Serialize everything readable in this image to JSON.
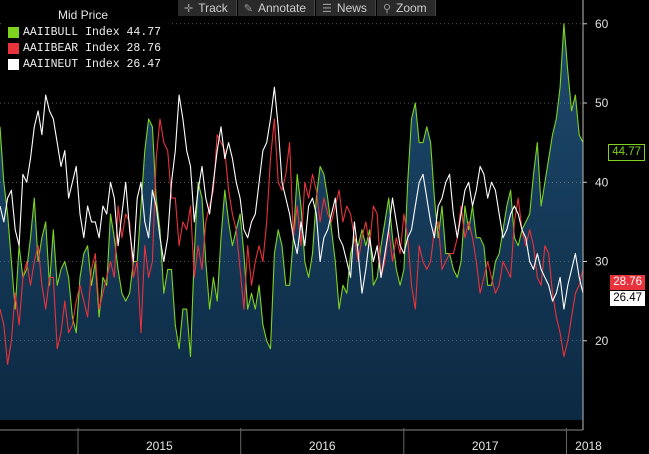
{
  "toolbar": {
    "track_label": "Track",
    "annotate_label": "Annotate",
    "news_label": "News",
    "zoom_label": "Zoom"
  },
  "legend": {
    "title": "Mid Price",
    "items": [
      {
        "label": "AAIIBULL Index 44.77",
        "color": "#7ed321"
      },
      {
        "label": "AAIIBEAR Index 28.76",
        "color": "#e8323c"
      },
      {
        "label": "AAIINEUT Index 26.47",
        "color": "#ffffff"
      }
    ]
  },
  "value_badges": [
    {
      "text": "44.77",
      "color": "#7ed321",
      "value": 44.77
    },
    {
      "text": "28.76",
      "color": "#e8323c",
      "value": 28.76
    },
    {
      "text": "26.47",
      "color": "#ffffff",
      "value": 26.47
    }
  ],
  "chart_data": {
    "type": "line",
    "y_ticks": [
      20,
      30,
      40,
      50,
      60
    ],
    "ylim": [
      10,
      63
    ],
    "x_labels": [
      "2015",
      "2016",
      "2017",
      "2018"
    ],
    "x_range": [
      "2014-07-10",
      "2018-02-07"
    ],
    "grid": true,
    "series": [
      {
        "name": "AAIIBULL Index",
        "color": "#7ed321",
        "area": true,
        "values": [
          47,
          40,
          36,
          30,
          24,
          32,
          28,
          29,
          33,
          38,
          30,
          33,
          35,
          27,
          34,
          27,
          29,
          30,
          28,
          23,
          21,
          28,
          31,
          32,
          27,
          30,
          23,
          28,
          27,
          36,
          33,
          29,
          26,
          25,
          26,
          30,
          30,
          37,
          44,
          48,
          47,
          38,
          34,
          26,
          29,
          29,
          22,
          19,
          24,
          24,
          18,
          31,
          40,
          38,
          30,
          24,
          28,
          25,
          33,
          39,
          35,
          32,
          34,
          36,
          31,
          24,
          26,
          24,
          27,
          22,
          20,
          19,
          31,
          34,
          32,
          27,
          27,
          33,
          41,
          37,
          30,
          28,
          31,
          38,
          42,
          41,
          38,
          34,
          30,
          24,
          27,
          26,
          31,
          33,
          32,
          34,
          32,
          34,
          27,
          28,
          32,
          35,
          38,
          33,
          29,
          27,
          29,
          40,
          48,
          50,
          45,
          45,
          47,
          45,
          38,
          33,
          37,
          31,
          31,
          29,
          28,
          30,
          37,
          34,
          37,
          33,
          33,
          32,
          27,
          27,
          30,
          31,
          34,
          37,
          39,
          33,
          32,
          34,
          35,
          36,
          41,
          45,
          37,
          40,
          43,
          46,
          48,
          52,
          60,
          54,
          49,
          51,
          46,
          45
        ]
      },
      {
        "name": "AAIIBEAR Index",
        "color": "#e8323c",
        "values": [
          24,
          22,
          17,
          20,
          26,
          22,
          28,
          30,
          27,
          30,
          32,
          27,
          24,
          28,
          28,
          19,
          21,
          25,
          21,
          22,
          25,
          27,
          25,
          23,
          29,
          31,
          24,
          26,
          28,
          30,
          28,
          37,
          33,
          36,
          35,
          28,
          30,
          21,
          32,
          28,
          30,
          43,
          48,
          45,
          44,
          38,
          38,
          32,
          35,
          34,
          37,
          28,
          32,
          29,
          35,
          37,
          39,
          46,
          45,
          44,
          39,
          36,
          34,
          29,
          24,
          32,
          27,
          30,
          32,
          30,
          35,
          43,
          48,
          40,
          39,
          41,
          45,
          33,
          37,
          32,
          40,
          38,
          41,
          39,
          35,
          38,
          36,
          35,
          37,
          39,
          35,
          37,
          36,
          33,
          30,
          33,
          35,
          32,
          37,
          36,
          28,
          30,
          34,
          30,
          33,
          31,
          36,
          33,
          27,
          24,
          32,
          30,
          29,
          30,
          34,
          35,
          29,
          30,
          31,
          31,
          33,
          37,
          33,
          35,
          33,
          30,
          26,
          28,
          30,
          28,
          26,
          27,
          30,
          29,
          28,
          35,
          38,
          34,
          32,
          34,
          32,
          28,
          27,
          32,
          31,
          26,
          23,
          21,
          18,
          20,
          23,
          26,
          27,
          29
        ]
      },
      {
        "name": "AAIINEUT Index",
        "color": "#ffffff",
        "values": [
          37,
          35,
          38,
          39,
          34,
          32,
          41,
          40,
          43,
          47,
          49,
          46,
          51,
          49,
          48,
          45,
          42,
          44,
          38,
          40,
          42,
          36,
          33,
          37,
          35,
          35,
          33,
          37,
          36,
          40,
          38,
          32,
          36,
          40,
          34,
          30,
          38,
          40,
          35,
          33,
          39,
          37,
          33,
          30,
          33,
          40,
          44,
          51,
          48,
          44,
          42,
          35,
          39,
          42,
          38,
          36,
          40,
          44,
          47,
          43,
          45,
          43,
          40,
          38,
          34,
          33,
          35,
          36,
          40,
          44,
          45,
          48,
          52,
          47,
          40,
          38,
          36,
          33,
          31,
          35,
          32,
          37,
          38,
          36,
          30,
          33,
          34,
          36,
          38,
          33,
          32,
          30,
          28,
          35,
          31,
          26,
          29,
          33,
          30,
          32,
          28,
          31,
          34,
          38,
          35,
          32,
          31,
          33,
          34,
          37,
          40,
          41,
          38,
          35,
          33,
          37,
          38,
          40,
          41,
          36,
          33,
          36,
          39,
          40,
          37,
          39,
          42,
          41,
          38,
          40,
          39,
          36,
          33,
          34,
          36,
          37,
          36,
          34,
          33,
          30,
          29,
          31,
          29,
          28,
          27,
          25,
          26,
          28,
          24,
          27,
          29,
          31,
          28,
          26
        ]
      }
    ]
  }
}
